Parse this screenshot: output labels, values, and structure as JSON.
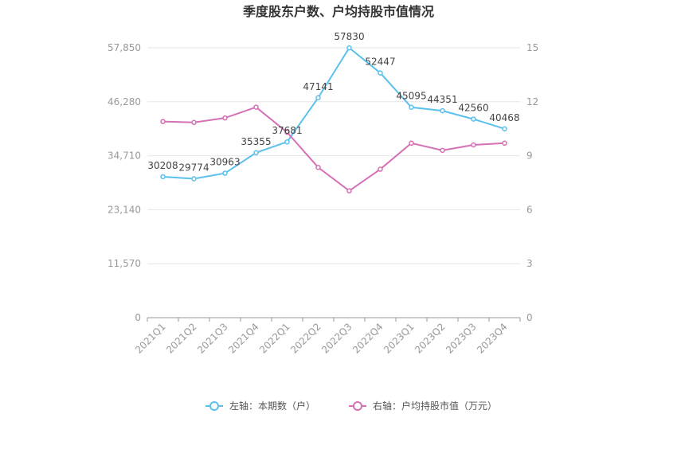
{
  "chart_data": {
    "type": "line",
    "title": "季度股东户数、户均持股市值情况",
    "categories": [
      "2021Q1",
      "2021Q2",
      "2021Q3",
      "2021Q4",
      "2022Q1",
      "2022Q2",
      "2022Q3",
      "2022Q4",
      "2023Q1",
      "2023Q2",
      "2023Q3",
      "2023Q4"
    ],
    "left_axis": {
      "ticks": [
        "0",
        "11,570",
        "23,140",
        "34,710",
        "46,280",
        "57,850"
      ],
      "ylim": [
        0,
        57850
      ]
    },
    "right_axis": {
      "ticks": [
        "0",
        "3",
        "6",
        "9",
        "12",
        "15"
      ],
      "ylim": [
        0,
        15
      ]
    },
    "series": [
      {
        "name": "左轴：本期数（户）",
        "axis": "left",
        "color": "#5bc0ee",
        "values": [
          30208,
          29774,
          30963,
          35355,
          37681,
          47141,
          57830,
          52447,
          45095,
          44351,
          42560,
          40468
        ],
        "labels": [
          "30208",
          "29774",
          "30963",
          "35355",
          "37681",
          "47141",
          "57830",
          "52447",
          "45095",
          "44351",
          "42560",
          "40468"
        ]
      },
      {
        "name": "右轴：户均持股市值（万元）",
        "axis": "right",
        "color": "#d670b5",
        "values": [
          10.9,
          10.85,
          11.1,
          11.7,
          10.3,
          8.35,
          7.05,
          8.25,
          9.7,
          9.3,
          9.6,
          9.7
        ]
      }
    ],
    "grid": true,
    "legend_position": "bottom-center"
  }
}
